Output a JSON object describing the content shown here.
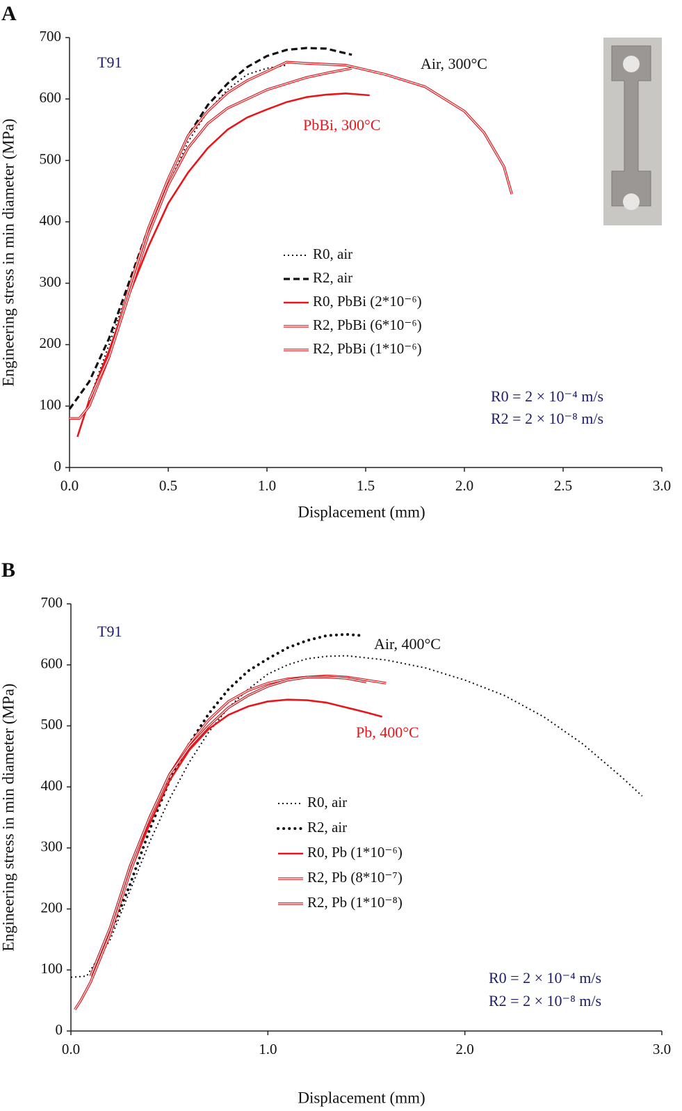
{
  "chart_data": [
    {
      "type": "line",
      "panel_label": "A",
      "xlabel": "Displacement (mm)",
      "ylabel": "Engineering stress in min diameter (MPa)",
      "xlim": [
        0,
        3
      ],
      "ylim": [
        0,
        700
      ],
      "xticks": [
        {
          "value": 0,
          "label": "0.0"
        },
        {
          "value": 0.5,
          "label": "0.5"
        },
        {
          "value": 1,
          "label": "1.0"
        },
        {
          "value": 1.5,
          "label": "1.5"
        },
        {
          "value": 2,
          "label": "2.0"
        },
        {
          "value": 2.5,
          "label": "2.5"
        },
        {
          "value": 3,
          "label": "3.0"
        }
      ],
      "yticks": [
        0,
        100,
        200,
        300,
        400,
        500,
        600,
        700
      ],
      "annotations": [
        "T91",
        "Air, 300°C",
        "PbBi, 300°C",
        "R0 = 2 × 10⁻⁴ m/s",
        "R2 = 2 × 10⁻⁸ m/s"
      ],
      "series": [
        {
          "name": "R0, air",
          "color": "#111111",
          "style": "dotted",
          "x": [
            0.1,
            0.2,
            0.3,
            0.4,
            0.5,
            0.6,
            0.7,
            0.8,
            0.9,
            1.0,
            1.1
          ],
          "values": [
            110,
            200,
            290,
            380,
            460,
            530,
            580,
            615,
            640,
            650,
            655
          ]
        },
        {
          "name": "R2, air",
          "color": "#111111",
          "style": "dashed",
          "x": [
            0,
            0.1,
            0.2,
            0.3,
            0.4,
            0.5,
            0.6,
            0.7,
            0.8,
            0.9,
            1.0,
            1.1,
            1.2,
            1.3,
            1.43
          ],
          "values": [
            95,
            140,
            210,
            300,
            390,
            470,
            540,
            590,
            625,
            652,
            670,
            680,
            683,
            682,
            672
          ]
        },
        {
          "name": "R0, PbBi (2*10⁻⁶)",
          "color": "#e8161b",
          "style": "solid",
          "x": [
            0.04,
            0.1,
            0.2,
            0.3,
            0.4,
            0.5,
            0.6,
            0.7,
            0.8,
            0.9,
            1.0,
            1.1,
            1.2,
            1.3,
            1.4,
            1.52
          ],
          "values": [
            50,
            110,
            190,
            280,
            360,
            430,
            480,
            520,
            550,
            570,
            583,
            595,
            603,
            607,
            609,
            606
          ]
        },
        {
          "name": "R2, PbBi (6*10⁻⁶)",
          "color": "#e8161b",
          "style": "double",
          "x": [
            0,
            0.05,
            0.1,
            0.2,
            0.3,
            0.4,
            0.5,
            0.6,
            0.7,
            0.8,
            0.9,
            1.0,
            1.1,
            1.2,
            1.4,
            1.6,
            1.8,
            2.0,
            2.1,
            2.2,
            2.24
          ],
          "values": [
            80,
            80,
            100,
            180,
            290,
            390,
            470,
            540,
            580,
            610,
            630,
            645,
            660,
            658,
            655,
            640,
            620,
            580,
            545,
            490,
            445
          ]
        },
        {
          "name": "R2, PbBi (1*10⁻⁶)",
          "color": "#e8161b",
          "style": "double",
          "x": [
            0.1,
            0.2,
            0.3,
            0.4,
            0.5,
            0.6,
            0.7,
            0.8,
            0.9,
            1.0,
            1.1,
            1.2,
            1.3,
            1.43
          ],
          "values": [
            110,
            180,
            280,
            380,
            460,
            520,
            560,
            585,
            600,
            615,
            625,
            635,
            642,
            650
          ]
        }
      ]
    },
    {
      "type": "line",
      "panel_label": "B",
      "xlabel": "Displacement (mm)",
      "ylabel": "Engineering stress in min diameter (MPa)",
      "xlim": [
        0,
        3
      ],
      "ylim": [
        0,
        700
      ],
      "xticks": [
        {
          "value": 0,
          "label": "0.0"
        },
        {
          "value": 1,
          "label": "1.0"
        },
        {
          "value": 2,
          "label": "2.0"
        },
        {
          "value": 3,
          "label": "3.0"
        }
      ],
      "yticks": [
        0,
        100,
        200,
        300,
        400,
        500,
        600,
        700
      ],
      "annotations": [
        "T91",
        "Air, 400°C",
        "Pb, 400°C",
        "R0 = 2 × 10⁻⁴ m/s",
        "R2 = 2 × 10⁻⁸ m/s"
      ],
      "series": [
        {
          "name": "R0, air",
          "color": "#111111",
          "style": "dotted",
          "x": [
            0,
            0.08,
            0.1,
            0.2,
            0.3,
            0.4,
            0.5,
            0.6,
            0.7,
            0.8,
            0.9,
            1.0,
            1.1,
            1.2,
            1.3,
            1.4,
            1.6,
            1.8,
            2.0,
            2.2,
            2.4,
            2.6,
            2.8,
            2.9
          ],
          "values": [
            88,
            90,
            100,
            150,
            230,
            310,
            380,
            440,
            490,
            530,
            560,
            585,
            600,
            610,
            614,
            615,
            608,
            595,
            575,
            550,
            515,
            470,
            415,
            385
          ]
        },
        {
          "name": "R2, air",
          "color": "#111111",
          "style": "dotted-heavy",
          "x": [
            0.15,
            0.2,
            0.3,
            0.4,
            0.5,
            0.6,
            0.7,
            0.8,
            0.9,
            1.0,
            1.1,
            1.2,
            1.3,
            1.4,
            1.48
          ],
          "values": [
            120,
            160,
            240,
            330,
            410,
            470,
            520,
            560,
            590,
            610,
            628,
            640,
            648,
            650,
            648
          ]
        },
        {
          "name": "R0, Pb (1*10⁻⁶)",
          "color": "#e8161b",
          "style": "solid",
          "x": [
            0.15,
            0.2,
            0.3,
            0.4,
            0.5,
            0.6,
            0.7,
            0.8,
            0.9,
            1.0,
            1.1,
            1.2,
            1.3,
            1.4,
            1.5,
            1.58
          ],
          "values": [
            120,
            170,
            260,
            340,
            410,
            460,
            495,
            518,
            532,
            540,
            543,
            542,
            538,
            530,
            522,
            515
          ]
        },
        {
          "name": "R2, Pb (8*10⁻⁷)",
          "color": "#e8161b",
          "style": "double",
          "x": [
            0.02,
            0.05,
            0.1,
            0.2,
            0.3,
            0.4,
            0.5,
            0.6,
            0.7,
            0.8,
            0.9,
            1.0,
            1.1,
            1.2,
            1.3,
            1.4,
            1.5,
            1.6
          ],
          "values": [
            35,
            50,
            80,
            160,
            260,
            350,
            420,
            470,
            510,
            540,
            558,
            570,
            577,
            580,
            582,
            580,
            575,
            570
          ]
        },
        {
          "name": "R2, Pb (1*10⁻⁸)",
          "color": "#c8161b",
          "style": "double",
          "x": [
            0.1,
            0.2,
            0.3,
            0.4,
            0.5,
            0.6,
            0.7,
            0.8,
            0.9,
            1.0,
            1.1,
            1.2,
            1.3,
            1.4,
            1.5
          ],
          "values": [
            90,
            170,
            270,
            350,
            420,
            465,
            500,
            530,
            550,
            565,
            575,
            580,
            580,
            578,
            572
          ]
        }
      ]
    }
  ]
}
